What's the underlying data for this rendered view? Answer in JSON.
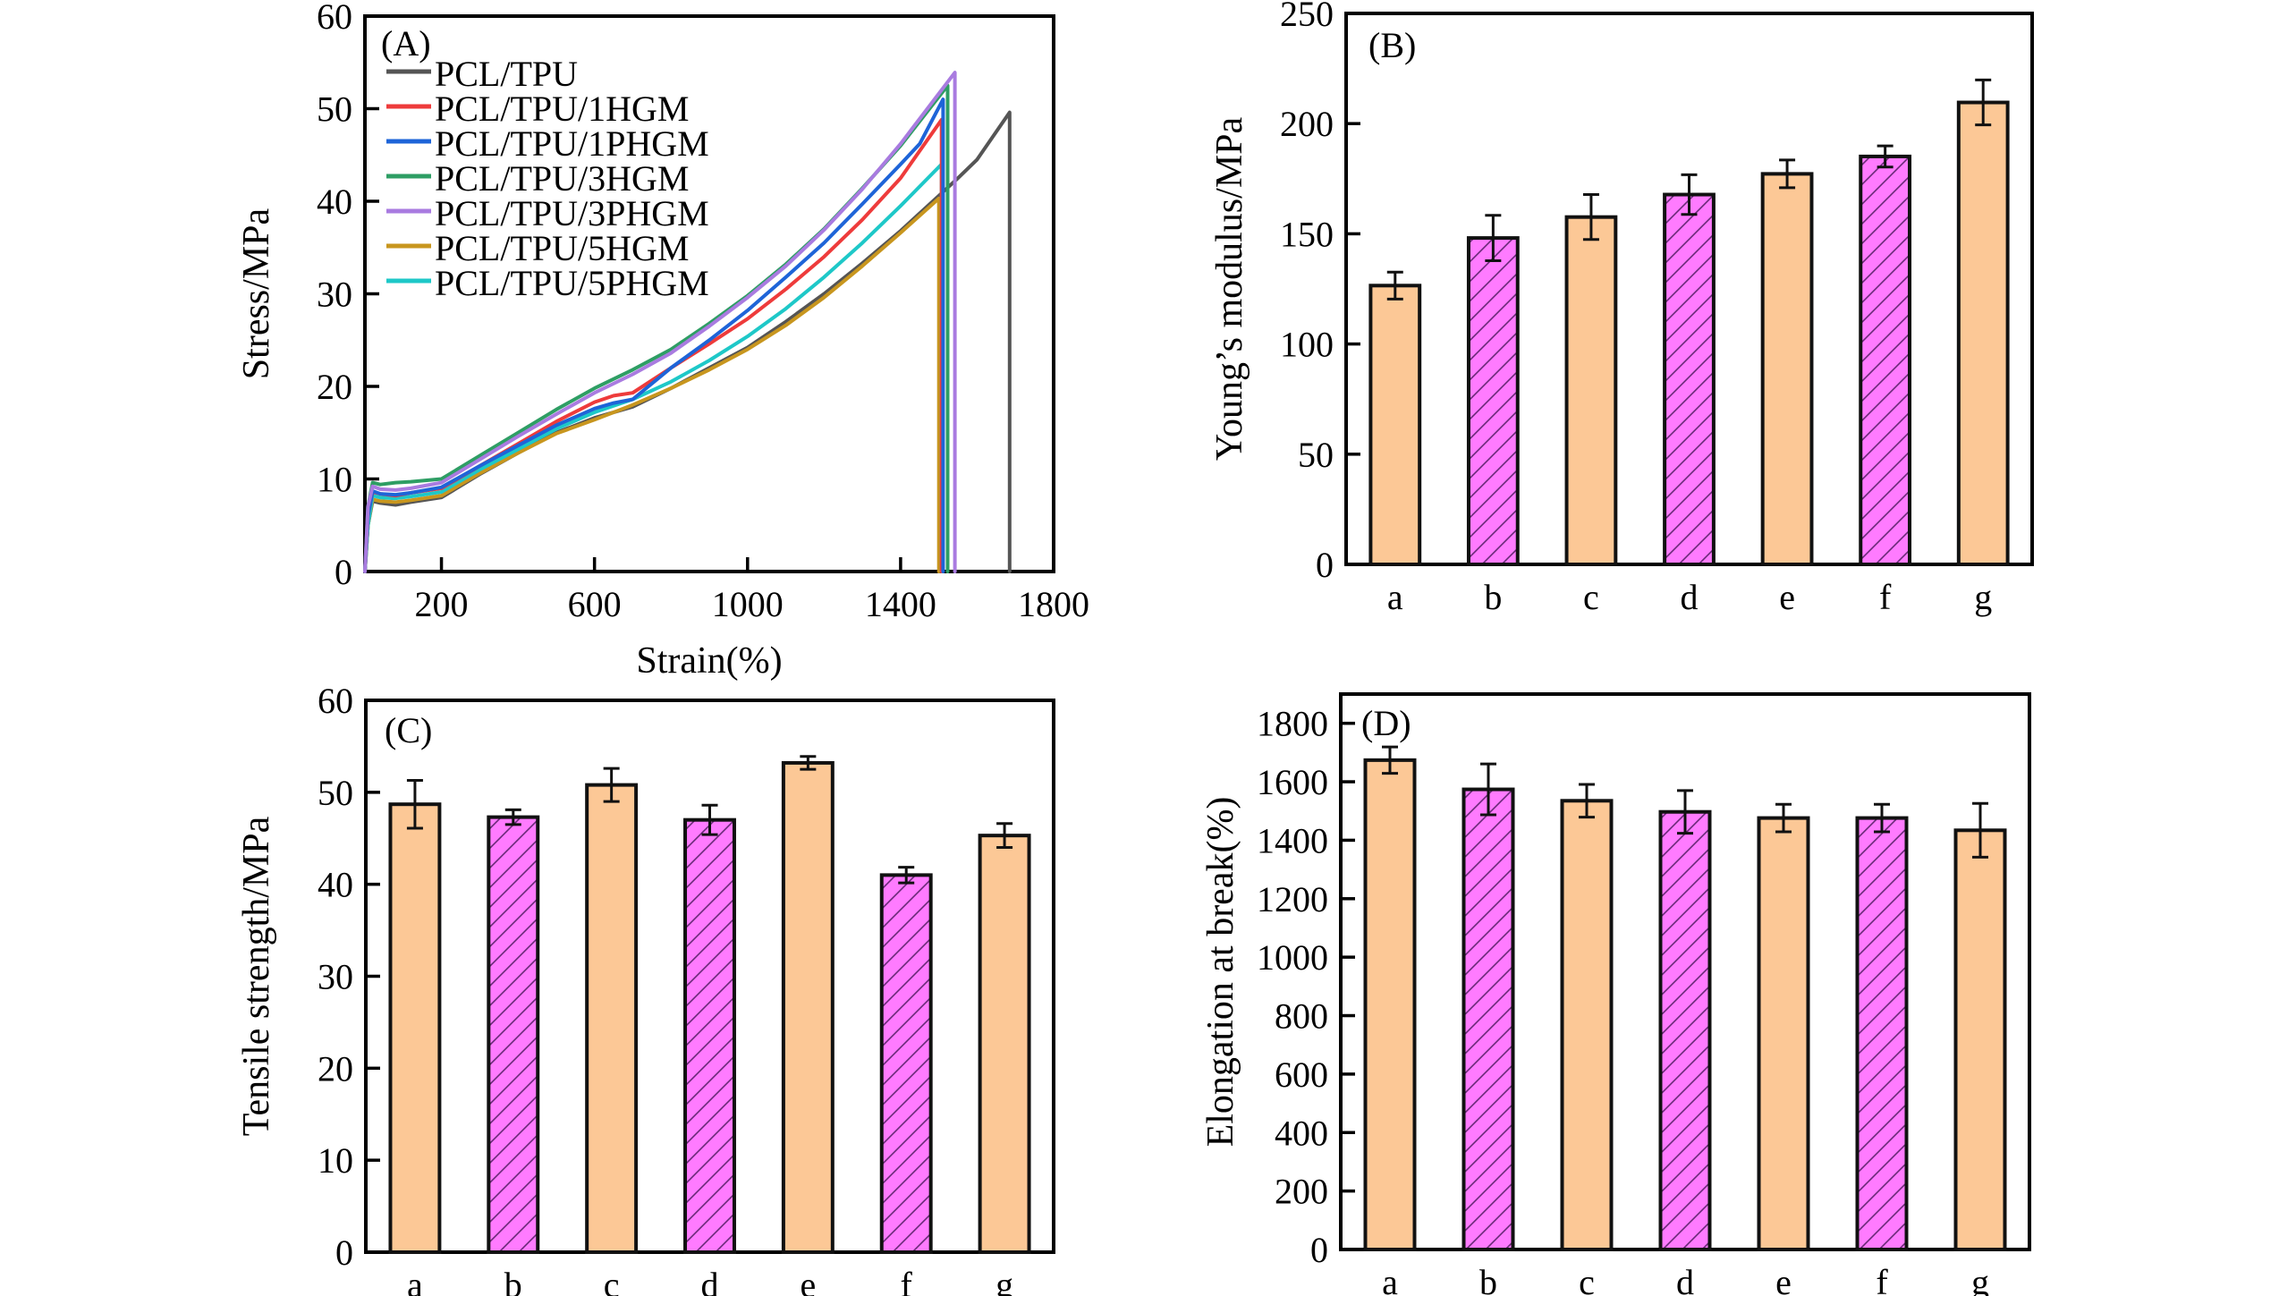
{
  "figure": {
    "panels": [
      "A",
      "B",
      "C",
      "D"
    ]
  },
  "colors": {
    "bar_plain": "#FCC896",
    "bar_hatched": "#FF7BFF",
    "hatch_line": "#6A2A78",
    "axis": "#000000"
  },
  "chart_data": [
    {
      "id": "A",
      "type": "line",
      "panel_label": "(A)",
      "title": "",
      "xlabel": "Strain(%)",
      "ylabel": "Stress/MPa",
      "xlim": [
        0,
        1800
      ],
      "ylim": [
        0,
        60
      ],
      "xticks": [
        200,
        600,
        1000,
        1400,
        1800
      ],
      "xtick_labels": [
        "200",
        "600",
        "1000",
        "1400",
        "1800"
      ],
      "yticks": [
        0,
        10,
        20,
        30,
        40,
        50,
        60
      ],
      "ytick_labels": [
        "0",
        "10",
        "20",
        "30",
        "40",
        "50",
        "60"
      ],
      "grid": false,
      "legend_position": "top-left",
      "series": [
        {
          "name": "PCL/TPU",
          "color": "#555555",
          "x": [
            0,
            8,
            20,
            40,
            80,
            120,
            200,
            300,
            400,
            500,
            600,
            700,
            800,
            900,
            1000,
            1100,
            1200,
            1300,
            1400,
            1500,
            1550,
            1600,
            1685,
            1685
          ],
          "y": [
            0,
            5,
            7.6,
            7.4,
            7.2,
            7.5,
            8.0,
            10.5,
            12.8,
            15.0,
            16.6,
            17.8,
            19.8,
            22.0,
            24.2,
            27.0,
            30.0,
            33.3,
            36.8,
            40.6,
            42.5,
            44.5,
            49.6,
            0
          ]
        },
        {
          "name": "PCL/TPU/1HGM",
          "color": "#EE3B3B",
          "x": [
            0,
            8,
            20,
            40,
            80,
            120,
            200,
            300,
            400,
            500,
            600,
            650,
            700,
            800,
            900,
            1000,
            1100,
            1200,
            1300,
            1400,
            1507,
            1507
          ],
          "y": [
            0,
            6,
            8.6,
            8.4,
            8.2,
            8.5,
            9.0,
            11.4,
            13.8,
            16.2,
            18.3,
            19.0,
            19.3,
            22.0,
            24.6,
            27.3,
            30.5,
            34.0,
            38.0,
            42.5,
            48.8,
            0
          ]
        },
        {
          "name": "PCL/TPU/1PHGM",
          "color": "#1E64D8",
          "x": [
            0,
            8,
            20,
            40,
            80,
            120,
            200,
            300,
            400,
            500,
            600,
            650,
            700,
            800,
            900,
            1000,
            1100,
            1200,
            1300,
            1400,
            1450,
            1511,
            1511
          ],
          "y": [
            0,
            6,
            8.7,
            8.4,
            8.3,
            8.5,
            9.1,
            11.4,
            13.6,
            15.8,
            17.6,
            18.2,
            18.6,
            22.0,
            25.0,
            28.2,
            31.8,
            35.5,
            39.7,
            44.0,
            46.2,
            51.0,
            0
          ]
        },
        {
          "name": "PCL/TPU/3HGM",
          "color": "#2E9E64",
          "x": [
            0,
            8,
            20,
            40,
            80,
            120,
            200,
            300,
            400,
            500,
            600,
            700,
            800,
            900,
            1000,
            1100,
            1200,
            1300,
            1400,
            1523,
            1523
          ],
          "y": [
            0,
            7,
            9.6,
            9.4,
            9.6,
            9.7,
            10.0,
            12.5,
            15.0,
            17.5,
            19.8,
            21.8,
            24.0,
            26.8,
            29.8,
            33.2,
            37.0,
            41.4,
            46.0,
            52.5,
            0
          ]
        },
        {
          "name": "PCL/TPU/3PHGM",
          "color": "#A97BE0",
          "x": [
            0,
            8,
            20,
            40,
            80,
            120,
            200,
            300,
            400,
            500,
            600,
            700,
            800,
            900,
            1000,
            1100,
            1200,
            1300,
            1400,
            1542,
            1542
          ],
          "y": [
            0,
            7,
            9.2,
            8.9,
            8.8,
            9.0,
            9.6,
            12.1,
            14.6,
            17.0,
            19.3,
            21.3,
            23.6,
            26.5,
            29.6,
            33.0,
            36.9,
            41.3,
            46.2,
            53.9,
            0
          ]
        },
        {
          "name": "PCL/TPU/5HGM",
          "color": "#C8961E",
          "x": [
            0,
            8,
            20,
            40,
            80,
            120,
            200,
            300,
            400,
            500,
            600,
            700,
            800,
            900,
            1000,
            1100,
            1200,
            1300,
            1400,
            1500,
            1500,
            1500
          ],
          "y": [
            0,
            5,
            7.8,
            7.6,
            7.5,
            7.7,
            8.2,
            10.6,
            12.8,
            14.9,
            16.4,
            18.0,
            19.8,
            21.8,
            24.0,
            26.6,
            29.6,
            33.0,
            36.6,
            40.3,
            12,
            0
          ]
        },
        {
          "name": "PCL/TPU/5PHGM",
          "color": "#1EC8C8",
          "x": [
            0,
            8,
            20,
            40,
            80,
            120,
            200,
            300,
            400,
            500,
            600,
            700,
            800,
            900,
            1000,
            1100,
            1200,
            1300,
            1400,
            1507,
            1507
          ],
          "y": [
            0,
            5,
            8.2,
            8.0,
            7.9,
            8.1,
            8.6,
            11.0,
            13.2,
            15.4,
            17.2,
            18.6,
            20.5,
            22.8,
            25.4,
            28.4,
            31.8,
            35.5,
            39.5,
            44.0,
            0
          ]
        }
      ]
    },
    {
      "id": "B",
      "type": "bar",
      "panel_label": "(B)",
      "title": "",
      "xlabel": "",
      "ylabel": "Young’s modulus/MPa",
      "categories": [
        "a",
        "b",
        "c",
        "d",
        "e",
        "f",
        "g"
      ],
      "values": [
        126.5,
        148.1,
        157.6,
        167.8,
        177.2,
        185.1,
        209.6
      ],
      "errors": [
        6.1,
        10.3,
        10.2,
        9.0,
        6.3,
        4.8,
        10.2
      ],
      "hatched": [
        false,
        true,
        false,
        true,
        false,
        true,
        false
      ],
      "ylim": [
        0,
        250
      ],
      "yticks": [
        0,
        50,
        100,
        150,
        200,
        250
      ],
      "ytick_labels": [
        "0",
        "50",
        "100",
        "150",
        "200",
        "250"
      ],
      "grid": false
    },
    {
      "id": "C",
      "type": "bar",
      "panel_label": "(C)",
      "title": "",
      "xlabel": "",
      "ylabel": "Tensile strength/MPa",
      "categories": [
        "a",
        "b",
        "c",
        "d",
        "e",
        "f",
        "g"
      ],
      "values": [
        48.7,
        47.3,
        50.8,
        47.0,
        53.2,
        41.0,
        45.3
      ],
      "errors": [
        2.6,
        0.8,
        1.8,
        1.6,
        0.7,
        0.85,
        1.3
      ],
      "hatched": [
        false,
        true,
        false,
        true,
        false,
        true,
        false
      ],
      "ylim": [
        0,
        60
      ],
      "yticks": [
        0,
        10,
        20,
        30,
        40,
        50,
        60
      ],
      "ytick_labels": [
        "0",
        "10",
        "20",
        "30",
        "40",
        "50",
        "60"
      ],
      "grid": false
    },
    {
      "id": "D",
      "type": "bar",
      "panel_label": "(D)",
      "title": "",
      "xlabel": "",
      "ylabel": "Elongation at break(%)",
      "categories": [
        "a",
        "b",
        "c",
        "d",
        "e",
        "f",
        "g"
      ],
      "values": [
        1674,
        1574,
        1535,
        1497,
        1476,
        1476,
        1434
      ],
      "errors": [
        45,
        87,
        56,
        73,
        47,
        47,
        92
      ],
      "hatched": [
        false,
        true,
        false,
        true,
        false,
        true,
        false
      ],
      "ylim": [
        0,
        1900
      ],
      "yticks": [
        0,
        200,
        400,
        600,
        800,
        1000,
        1200,
        1400,
        1600,
        1800
      ],
      "ytick_labels": [
        "0",
        "200",
        "400",
        "600",
        "800",
        "1000",
        "1200",
        "1400",
        "1600",
        "1800"
      ],
      "grid": false
    }
  ]
}
